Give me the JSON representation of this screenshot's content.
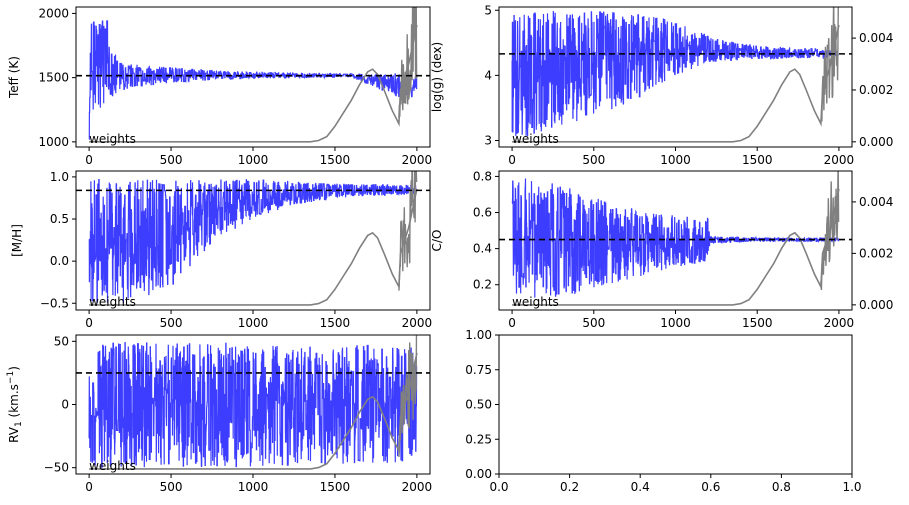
{
  "colors": {
    "trace": "#3333ff",
    "weights": "#808080",
    "reference": "#000000"
  },
  "chart_data": [
    {
      "type": "line",
      "ylabel": "Teff (K)",
      "xlim": [
        -80,
        2080
      ],
      "ylim": [
        960,
        2050
      ],
      "xticks": [
        0,
        500,
        1000,
        1500,
        2000
      ],
      "yticks": [
        1000,
        1500,
        2000
      ],
      "annotation": "weights",
      "reference_line": 1515,
      "trace_envelope": {
        "x": [
          0,
          20,
          60,
          110,
          150,
          200,
          300,
          500,
          700,
          1000,
          1300,
          1600,
          1900,
          2000
        ],
        "low": [
          1020,
          1100,
          1250,
          1300,
          1370,
          1400,
          1430,
          1460,
          1480,
          1495,
          1500,
          1505,
          1340,
          1350
        ],
        "high": [
          1980,
          1990,
          1970,
          1950,
          1700,
          1620,
          1600,
          1580,
          1560,
          1545,
          1535,
          1530,
          1530,
          1520
        ]
      },
      "weights_curve": {
        "x": [
          0,
          1350,
          1400,
          1450,
          1500,
          1550,
          1600,
          1650,
          1700,
          1730,
          1760,
          1800,
          1850,
          1890,
          1900,
          1950,
          2000
        ],
        "y": [
          0,
          0,
          5e-05,
          0.0002,
          0.0006,
          0.0011,
          0.0016,
          0.0022,
          0.0027,
          0.0028,
          0.0026,
          0.002,
          0.0012,
          0.0007,
          0.002,
          0.003,
          0.0045
        ]
      }
    },
    {
      "type": "line",
      "ylabel": "log(g) (dex)",
      "xlim": [
        -80,
        2080
      ],
      "ylim": [
        2.9,
        5.05
      ],
      "xticks": [
        0,
        500,
        1000,
        1500,
        2000
      ],
      "yticks": [
        3,
        4,
        5
      ],
      "y2lim": [
        -0.0002,
        0.0052
      ],
      "y2ticks": [
        0,
        0.002,
        0.004
      ],
      "y2ticklabels": [
        "0.000",
        "0.002",
        "0.004"
      ],
      "annotation": "weights",
      "reference_line": 4.33,
      "trace_envelope": {
        "x": [
          0,
          300,
          500,
          750,
          1000,
          1200,
          1500,
          2000
        ],
        "low": [
          3.0,
          3.2,
          3.4,
          3.6,
          4.0,
          4.2,
          4.25,
          4.27
        ],
        "high": [
          4.98,
          4.98,
          4.98,
          4.95,
          4.85,
          4.6,
          4.45,
          4.4
        ]
      },
      "weights_curve": {
        "x": [
          0,
          1350,
          1400,
          1450,
          1500,
          1550,
          1600,
          1650,
          1700,
          1730,
          1760,
          1800,
          1850,
          1890,
          1900,
          1950,
          2000
        ],
        "y": [
          0,
          0,
          5e-05,
          0.0002,
          0.0006,
          0.0011,
          0.0016,
          0.0022,
          0.0027,
          0.0028,
          0.0026,
          0.002,
          0.0012,
          0.0007,
          0.002,
          0.003,
          0.0045
        ]
      }
    },
    {
      "type": "line",
      "ylabel": "[M/H]",
      "xlim": [
        -80,
        2080
      ],
      "ylim": [
        -0.58,
        1.07
      ],
      "xticks": [
        0,
        500,
        1000,
        1500,
        2000
      ],
      "yticks": [
        -0.5,
        0,
        0.5,
        1
      ],
      "yticklabels": [
        "−0.5",
        "0.0",
        "0.5",
        "1.0"
      ],
      "annotation": "weights",
      "reference_line": 0.84,
      "trace_envelope": {
        "x": [
          0,
          100,
          200,
          300,
          400,
          500,
          600,
          700,
          800,
          1000,
          1200,
          1500,
          2000
        ],
        "low": [
          -0.5,
          -0.5,
          -0.5,
          -0.48,
          -0.4,
          -0.3,
          -0.1,
          0.1,
          0.3,
          0.5,
          0.65,
          0.75,
          0.8
        ],
        "high": [
          1.0,
          0.98,
          0.97,
          0.97,
          0.97,
          0.97,
          0.97,
          0.98,
          0.98,
          0.97,
          0.95,
          0.92,
          0.9
        ]
      },
      "weights_curve": {
        "x": [
          0,
          1350,
          1400,
          1450,
          1500,
          1550,
          1600,
          1650,
          1700,
          1730,
          1760,
          1800,
          1850,
          1890,
          1900,
          1950,
          2000
        ],
        "y": [
          0,
          0,
          5e-05,
          0.0002,
          0.0006,
          0.0011,
          0.0016,
          0.0022,
          0.0027,
          0.0028,
          0.0026,
          0.002,
          0.0012,
          0.0007,
          0.002,
          0.003,
          0.0045
        ]
      }
    },
    {
      "type": "line",
      "ylabel": "C/O",
      "xlim": [
        -80,
        2080
      ],
      "ylim": [
        0.06,
        0.83
      ],
      "xticks": [
        0,
        500,
        1000,
        1500,
        2000
      ],
      "yticks": [
        0.2,
        0.4,
        0.6,
        0.8
      ],
      "y2lim": [
        -0.0002,
        0.0052
      ],
      "y2ticks": [
        0,
        0.002,
        0.004
      ],
      "y2ticklabels": [
        "0.000",
        "0.002",
        "0.004"
      ],
      "annotation": "weights",
      "reference_line": 0.45,
      "trace_envelope": {
        "x": [
          0,
          200,
          400,
          600,
          800,
          1000,
          1200,
          1210,
          1500,
          2000
        ],
        "low": [
          0.1,
          0.12,
          0.15,
          0.2,
          0.25,
          0.3,
          0.33,
          0.43,
          0.44,
          0.44
        ],
        "high": [
          0.8,
          0.78,
          0.72,
          0.66,
          0.6,
          0.58,
          0.57,
          0.47,
          0.46,
          0.46
        ]
      },
      "weights_curve": {
        "x": [
          0,
          1350,
          1400,
          1450,
          1500,
          1550,
          1600,
          1650,
          1700,
          1730,
          1760,
          1800,
          1850,
          1890,
          1900,
          1950,
          2000
        ],
        "y": [
          0,
          0,
          5e-05,
          0.0002,
          0.0006,
          0.0011,
          0.0016,
          0.0022,
          0.0027,
          0.0028,
          0.0026,
          0.002,
          0.0012,
          0.0007,
          0.002,
          0.003,
          0.0045
        ]
      }
    },
    {
      "type": "line",
      "ylabel": "RV",
      "ylabel_sub": "1",
      "ylabel_units": " (km.s",
      "ylabel_sup": "−1",
      "ylabel_close": ")",
      "xlim": [
        -80,
        2080
      ],
      "ylim": [
        -55,
        55
      ],
      "xticks": [
        0,
        500,
        1000,
        1500,
        2000
      ],
      "yticks": [
        -50,
        0,
        50
      ],
      "yticklabels": [
        "−50",
        "0",
        "50"
      ],
      "annotation": "weights",
      "reference_line": 25,
      "trace_envelope": {
        "x": [
          0,
          500,
          1000,
          1500,
          2000
        ],
        "low": [
          -50,
          -50,
          -49,
          -48,
          -45
        ],
        "high": [
          50,
          50,
          49,
          48,
          45
        ]
      },
      "weights_curve": {
        "x": [
          0,
          1350,
          1400,
          1450,
          1500,
          1550,
          1600,
          1650,
          1700,
          1730,
          1760,
          1800,
          1850,
          1890,
          1900,
          1950,
          2000
        ],
        "y": [
          0,
          0,
          5e-05,
          0.0002,
          0.0006,
          0.0011,
          0.0016,
          0.0022,
          0.0027,
          0.0028,
          0.0026,
          0.002,
          0.0012,
          0.0007,
          0.002,
          0.003,
          0.0045
        ]
      }
    },
    {
      "type": "line",
      "empty": true,
      "xlim": [
        0,
        1
      ],
      "ylim": [
        0,
        1
      ],
      "xticks": [
        0,
        0.2,
        0.4,
        0.6,
        0.8,
        1.0
      ],
      "xticklabels": [
        "0.0",
        "0.2",
        "0.4",
        "0.6",
        "0.8",
        "1.0"
      ],
      "yticks": [
        0,
        0.25,
        0.5,
        0.75,
        1.0
      ],
      "yticklabels": [
        "0.00",
        "0.25",
        "0.50",
        "0.75",
        "1.00"
      ]
    }
  ]
}
